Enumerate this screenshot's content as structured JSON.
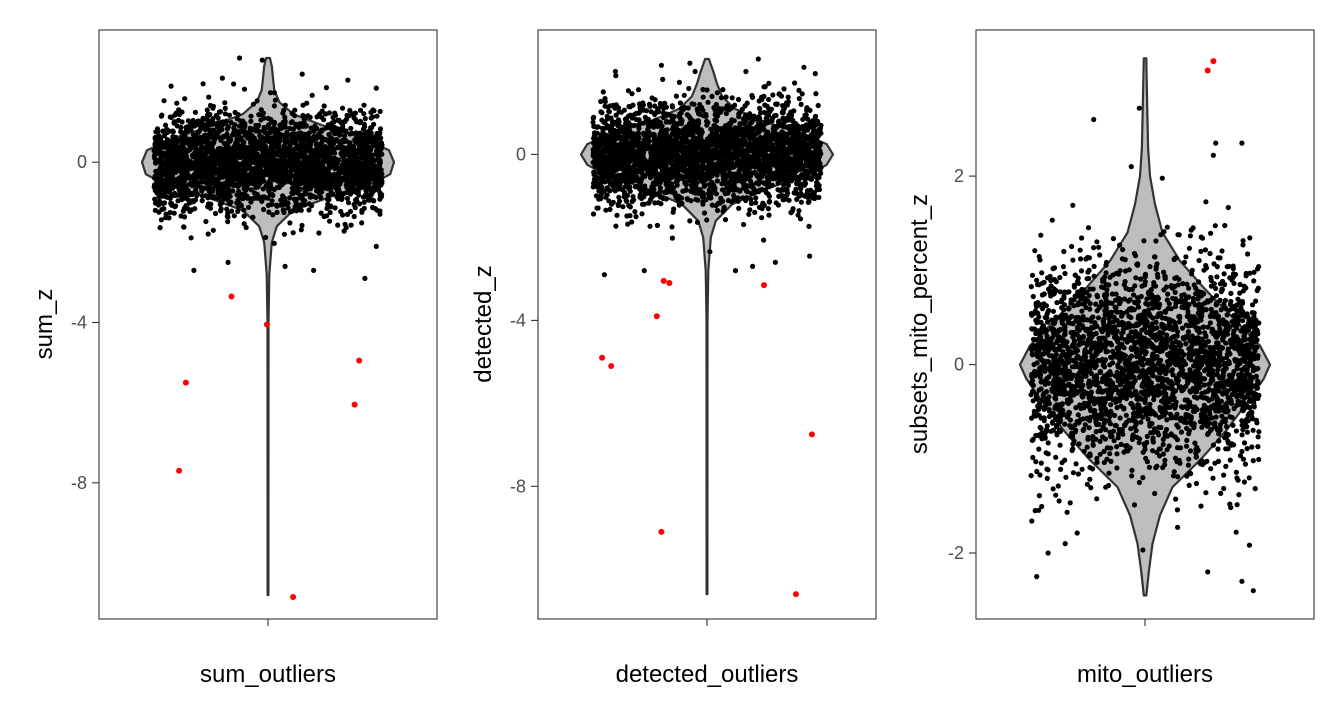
{
  "chart_data": [
    {
      "type": "violin",
      "xlabel": "sum_outliers",
      "ylabel": "sum_z",
      "ylim": [
        -11.4,
        3.3
      ],
      "yticks": [
        0,
        -4,
        -8
      ],
      "ytick_labels": [
        "0",
        "-4",
        "-8"
      ],
      "grid": false,
      "violin_range": [
        -10.8,
        2.6
      ],
      "violin_profile": [
        [
          -10.8,
          0.003
        ],
        [
          -4,
          0.004
        ],
        [
          -2.8,
          0.01
        ],
        [
          -2,
          0.03
        ],
        [
          -1.6,
          0.07
        ],
        [
          -1.2,
          0.2
        ],
        [
          -0.8,
          0.55
        ],
        [
          -0.5,
          0.85
        ],
        [
          -0.3,
          0.97
        ],
        [
          0,
          1.0
        ],
        [
          0.3,
          0.96
        ],
        [
          0.6,
          0.75
        ],
        [
          0.9,
          0.45
        ],
        [
          1.2,
          0.2
        ],
        [
          1.5,
          0.09
        ],
        [
          1.8,
          0.05
        ],
        [
          2.1,
          0.04
        ],
        [
          2.4,
          0.03
        ],
        [
          2.6,
          0.015
        ]
      ],
      "inlier_count": 2800,
      "inlier_spread_sd": 0.6,
      "inlier_points": [
        [
          -0.25,
          2.6
        ],
        [
          -0.05,
          2.55
        ],
        [
          0.3,
          2.2
        ],
        [
          -0.4,
          2.1
        ],
        [
          0.7,
          2.05
        ],
        [
          -0.85,
          1.9
        ],
        [
          0.95,
          1.85
        ],
        [
          -0.65,
          -2.7
        ],
        [
          0.15,
          -2.6
        ],
        [
          0.4,
          -2.7
        ],
        [
          0.85,
          -2.9
        ],
        [
          -0.35,
          -2.5
        ],
        [
          0.95,
          -2.1
        ]
      ],
      "outlier_points": [
        [
          -0.78,
          -7.7
        ],
        [
          -0.72,
          -5.5
        ],
        [
          -0.32,
          -3.35
        ],
        [
          -0.01,
          -4.05
        ],
        [
          0.22,
          -10.85
        ],
        [
          0.76,
          -6.05
        ],
        [
          0.8,
          -4.95
        ]
      ]
    },
    {
      "type": "violin",
      "xlabel": "detected_outliers",
      "ylabel": "detected_z",
      "ylim": [
        -11.2,
        3.0
      ],
      "yticks": [
        0,
        -4,
        -8
      ],
      "ytick_labels": [
        "0",
        "-4",
        "-8"
      ],
      "grid": false,
      "violin_range": [
        -10.6,
        2.3
      ],
      "violin_profile": [
        [
          -10.6,
          0.003
        ],
        [
          -4,
          0.004
        ],
        [
          -2.8,
          0.01
        ],
        [
          -2,
          0.03
        ],
        [
          -1.6,
          0.07
        ],
        [
          -1.2,
          0.2
        ],
        [
          -0.8,
          0.5
        ],
        [
          -0.5,
          0.8
        ],
        [
          -0.25,
          0.95
        ],
        [
          0,
          1.0
        ],
        [
          0.25,
          0.95
        ],
        [
          0.5,
          0.75
        ],
        [
          0.8,
          0.45
        ],
        [
          1.1,
          0.22
        ],
        [
          1.4,
          0.12
        ],
        [
          1.7,
          0.08
        ],
        [
          2.0,
          0.05
        ],
        [
          2.3,
          0.015
        ]
      ],
      "inlier_count": 2800,
      "inlier_spread_sd": 0.6,
      "inlier_points": [
        [
          0.45,
          2.3
        ],
        [
          -0.4,
          2.15
        ],
        [
          -0.15,
          2.2
        ],
        [
          0.85,
          2.1
        ],
        [
          -0.8,
          1.9
        ],
        [
          0.95,
          1.95
        ],
        [
          -0.9,
          -2.9
        ],
        [
          -0.55,
          -2.8
        ],
        [
          0.25,
          -2.8
        ],
        [
          0.4,
          -2.7
        ],
        [
          0.9,
          -2.45
        ],
        [
          0.6,
          -2.6
        ]
      ],
      "outlier_points": [
        [
          -0.92,
          -4.9
        ],
        [
          -0.84,
          -5.1
        ],
        [
          -0.4,
          -9.1
        ],
        [
          -0.44,
          -3.9
        ],
        [
          -0.38,
          -3.05
        ],
        [
          -0.33,
          -3.1
        ],
        [
          0.5,
          -3.15
        ],
        [
          0.78,
          -10.6
        ],
        [
          0.92,
          -6.75
        ]
      ]
    },
    {
      "type": "violin",
      "xlabel": "mito_outliers",
      "ylabel": "subsets_mito_percent_z",
      "ylim": [
        -2.7,
        3.55
      ],
      "yticks": [
        2,
        0,
        -2
      ],
      "ytick_labels": [
        "2",
        "0",
        "-2"
      ],
      "grid": false,
      "violin_range": [
        -2.45,
        3.25
      ],
      "violin_profile": [
        [
          -2.45,
          0.01
        ],
        [
          -2.2,
          0.03
        ],
        [
          -1.9,
          0.06
        ],
        [
          -1.6,
          0.12
        ],
        [
          -1.3,
          0.22
        ],
        [
          -1.0,
          0.45
        ],
        [
          -0.7,
          0.65
        ],
        [
          -0.4,
          0.82
        ],
        [
          -0.15,
          0.95
        ],
        [
          0,
          1.0
        ],
        [
          0.2,
          0.92
        ],
        [
          0.5,
          0.7
        ],
        [
          0.8,
          0.48
        ],
        [
          1.1,
          0.28
        ],
        [
          1.4,
          0.14
        ],
        [
          1.7,
          0.08
        ],
        [
          2.0,
          0.04
        ],
        [
          2.3,
          0.025
        ],
        [
          2.6,
          0.02
        ],
        [
          2.9,
          0.015
        ],
        [
          3.25,
          0.01
        ]
      ],
      "inlier_count": 2800,
      "inlier_spread_sd": 0.55,
      "inlier_points": [
        [
          -0.05,
          2.72
        ],
        [
          -0.45,
          2.6
        ],
        [
          0.62,
          2.35
        ],
        [
          0.85,
          2.35
        ],
        [
          0.6,
          2.22
        ],
        [
          -0.12,
          2.1
        ],
        [
          -0.95,
          -2.25
        ],
        [
          -0.85,
          -2.0
        ],
        [
          0.55,
          -2.2
        ],
        [
          0.95,
          -2.4
        ],
        [
          0.85,
          -2.3
        ],
        [
          -0.7,
          -1.9
        ]
      ],
      "outlier_points": [
        [
          0.55,
          3.12
        ],
        [
          0.6,
          3.22
        ]
      ]
    }
  ]
}
